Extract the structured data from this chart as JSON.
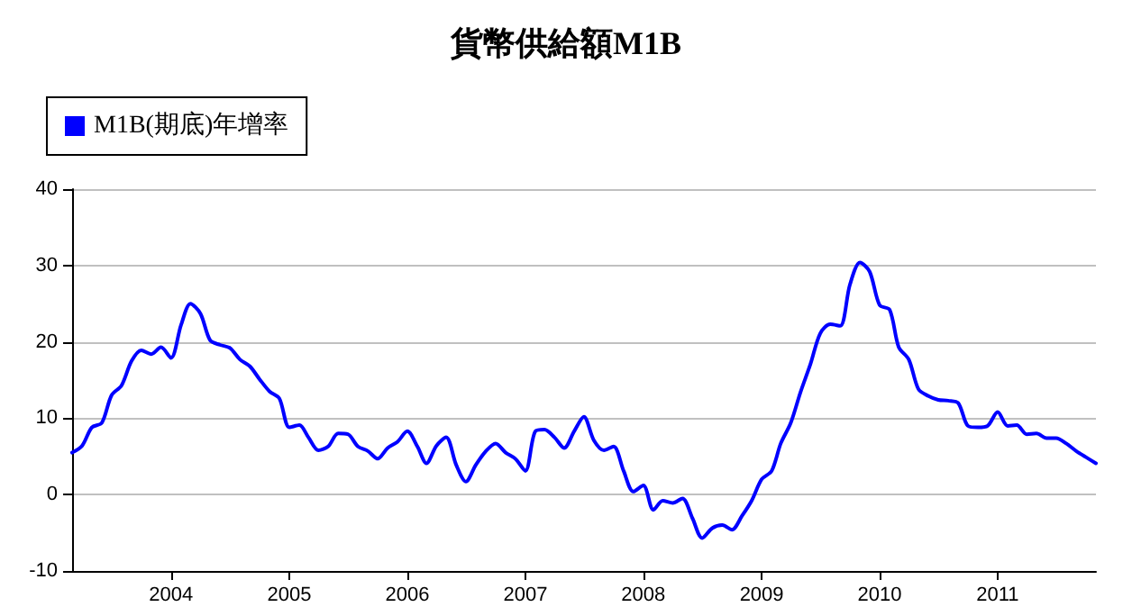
{
  "chart_data": {
    "type": "line",
    "title": "貨幣供給額M1B",
    "x": [
      "2003-03",
      "2003-04",
      "2003-05",
      "2003-06",
      "2003-07",
      "2003-08",
      "2003-09",
      "2003-10",
      "2003-11",
      "2003-12",
      "2004-01",
      "2004-02",
      "2004-03",
      "2004-04",
      "2004-05",
      "2004-06",
      "2004-07",
      "2004-08",
      "2004-09",
      "2004-10",
      "2004-11",
      "2004-12",
      "2005-01",
      "2005-02",
      "2005-03",
      "2005-04",
      "2005-05",
      "2005-06",
      "2005-07",
      "2005-08",
      "2005-09",
      "2005-10",
      "2005-11",
      "2005-12",
      "2006-01",
      "2006-02",
      "2006-03",
      "2006-04",
      "2006-05",
      "2006-06",
      "2006-07",
      "2006-08",
      "2006-09",
      "2006-10",
      "2006-11",
      "2006-12",
      "2007-01",
      "2007-02",
      "2007-03",
      "2007-04",
      "2007-05",
      "2007-06",
      "2007-07",
      "2007-08",
      "2007-09",
      "2007-10",
      "2007-11",
      "2007-12",
      "2008-01",
      "2008-02",
      "2008-03",
      "2008-04",
      "2008-05",
      "2008-06",
      "2008-07",
      "2008-08",
      "2008-09",
      "2008-10",
      "2008-11",
      "2008-12",
      "2009-01",
      "2009-02",
      "2009-03",
      "2009-04",
      "2009-05",
      "2009-06",
      "2009-07",
      "2009-08",
      "2009-09",
      "2009-10",
      "2009-11",
      "2009-12",
      "2010-01",
      "2010-02",
      "2010-03",
      "2010-04",
      "2010-05",
      "2010-06",
      "2010-07",
      "2010-08",
      "2010-09",
      "2010-10",
      "2010-11",
      "2010-12",
      "2011-01",
      "2011-02",
      "2011-03",
      "2011-04",
      "2011-05",
      "2011-06",
      "2011-07",
      "2011-08",
      "2011-09",
      "2011-10",
      "2011-11"
    ],
    "series": [
      {
        "name": "M1B(期底)年增率",
        "color": "#0000ff",
        "values": [
          5.5,
          6.4,
          8.8,
          9.4,
          13.0,
          14.3,
          17.5,
          18.9,
          18.4,
          19.3,
          17.9,
          22.2,
          25.0,
          23.7,
          20.2,
          19.6,
          19.2,
          17.7,
          16.8,
          15.1,
          13.5,
          12.6,
          8.8,
          9.1,
          7.5,
          5.8,
          6.3,
          8.0,
          7.9,
          6.3,
          5.7,
          4.7,
          6.1,
          6.9,
          8.3,
          6.3,
          4.1,
          6.4,
          7.5,
          3.9,
          1.7,
          3.9,
          5.7,
          6.7,
          5.5,
          4.7,
          3.1,
          8.3,
          8.5,
          7.5,
          6.1,
          8.3,
          10.2,
          7.1,
          5.8,
          6.3,
          3.1,
          0.4,
          1.2,
          -2.0,
          -0.8,
          -1.1,
          -0.5,
          -3.1,
          -5.7,
          -4.4,
          -4.0,
          -4.6,
          -2.8,
          -0.8,
          2.0,
          3.1,
          6.7,
          9.4,
          13.4,
          17.1,
          21.1,
          22.3,
          22.1,
          27.5,
          30.4,
          29.2,
          24.8,
          24.2,
          19.3,
          17.7,
          13.8,
          12.9,
          12.4,
          12.3,
          12.0,
          9.0,
          8.8,
          9.0,
          10.8,
          9.0,
          9.1,
          7.9,
          8.0,
          7.4,
          7.4,
          6.7,
          5.7,
          4.9,
          4.1
        ]
      }
    ],
    "xlim": [
      "2003-03",
      "2011-11"
    ],
    "xticks": [
      "2004",
      "2005",
      "2006",
      "2007",
      "2008",
      "2009",
      "2010",
      "2011"
    ],
    "ylim": [
      -10,
      40
    ],
    "yticks": [
      -10,
      0,
      10,
      20,
      30,
      40
    ],
    "grid": "y",
    "legend": "top left",
    "marker": "none",
    "line_style": "solid"
  }
}
